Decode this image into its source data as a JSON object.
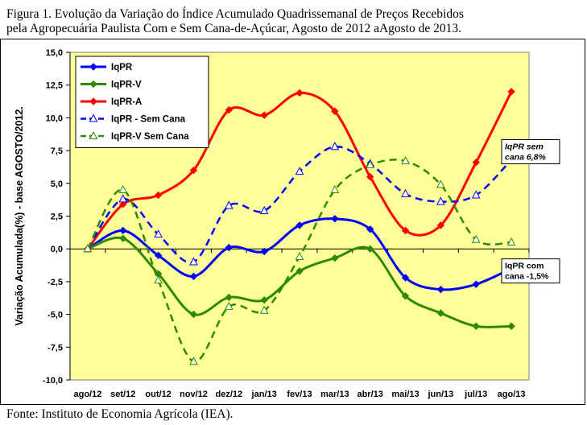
{
  "caption": {
    "line1": "Figura 1. Evolução da Variação do Índice Acumulado Quadrissemanal de Preços Recebidos",
    "line2": "pela Agropecuária Paulista Com e Sem Cana-de-Açúcar, Agosto de 2012 aAgosto de 2013."
  },
  "source": "Fonte: Instituto de Economia Agrícola (IEA).",
  "chart_data": {
    "type": "line",
    "title": "",
    "xlabel": "",
    "ylabel": "Variação Acumulada(%) - base AGOSTO/2012.",
    "ylim": [
      -10,
      15
    ],
    "ytick_step": 2.5,
    "ytick_labels": [
      "-10,0",
      "-7,5",
      "-5,0",
      "-2,5",
      "0,0",
      "2,5",
      "5,0",
      "7,5",
      "10,0",
      "12,5",
      "15,0"
    ],
    "grid": false,
    "plot_background": "#ffff99",
    "legend_position": "top-left",
    "categories": [
      "ago/12",
      "set/12",
      "out/12",
      "nov/12",
      "dez/12",
      "jan/13",
      "fev/13",
      "mar/13",
      "abr/13",
      "mai/13",
      "jun/13",
      "jul/13",
      "ago/13"
    ],
    "series": [
      {
        "name": "IqPR",
        "color": "#0000ff",
        "style": "solid",
        "marker": "diamond",
        "values": [
          0.0,
          1.4,
          -0.5,
          -2.1,
          0.1,
          -0.2,
          1.8,
          2.3,
          1.5,
          -2.2,
          -3.1,
          -2.7,
          -1.5
        ]
      },
      {
        "name": "IqPR-V",
        "color": "#2e8b00",
        "style": "solid",
        "marker": "diamond",
        "values": [
          0.0,
          0.8,
          -1.9,
          -5.0,
          -3.7,
          -3.9,
          -1.7,
          -0.7,
          0.0,
          -3.6,
          -4.9,
          -5.9,
          -5.9
        ]
      },
      {
        "name": "IqPR-A",
        "color": "#ff0000",
        "style": "solid",
        "marker": "diamond",
        "values": [
          0.0,
          3.4,
          4.1,
          6.0,
          10.6,
          10.2,
          11.9,
          10.5,
          5.5,
          1.4,
          1.8,
          6.6,
          12.0
        ]
      },
      {
        "name": "IqPR - Sem Cana",
        "color": "#0000ff",
        "style": "dashed",
        "marker": "triangle",
        "values": [
          0.0,
          3.8,
          1.1,
          -1.0,
          3.3,
          2.9,
          5.9,
          7.8,
          6.5,
          4.2,
          3.6,
          4.1,
          6.8
        ]
      },
      {
        "name": "IqPR-V Sem Cana",
        "color": "#2e8b00",
        "style": "dashed",
        "marker": "triangle",
        "values": [
          0.0,
          4.5,
          -2.4,
          -8.6,
          -4.4,
          -4.7,
          -0.6,
          4.5,
          6.4,
          6.7,
          4.9,
          0.7,
          0.5
        ]
      }
    ],
    "annotations": [
      {
        "text_line1": "IqPR sem",
        "text_line2": "cana 6,8%",
        "series": "IqPR - Sem Cana",
        "italic": true
      },
      {
        "text_line1": "IqPR com",
        "text_line2": "cana -1,5%",
        "series": "IqPR",
        "italic": false
      }
    ]
  }
}
